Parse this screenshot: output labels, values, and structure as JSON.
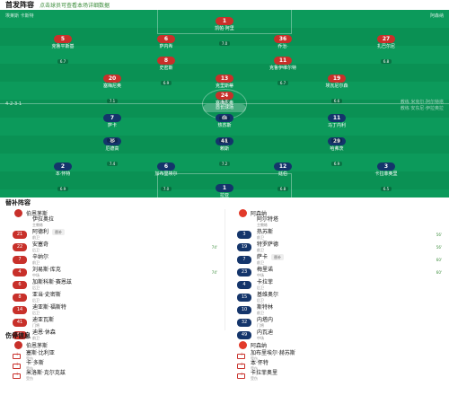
{
  "header": {
    "title": "首发阵容",
    "hint": "点击球员可查看本场详细数据"
  },
  "pitch": {
    "home_team_name": "埃莱斯 卡斯特",
    "away_team_name": "阿森纳",
    "away_form": "4-3-3",
    "home_form": "4-2-3-1",
    "venue": "酋长球场",
    "home_coach": "教练 安东尼·伊拉奥拉",
    "away_coach": "教练 米克尔·阿尔特塔"
  },
  "away_players": [
    {
      "num": "1",
      "name": "拉亚",
      "rating": "6.7"
    },
    {
      "num": "2",
      "name": "本·怀特",
      "rating": "6.9"
    },
    {
      "num": "6",
      "name": "加布里埃尔",
      "rating": "7.0"
    },
    {
      "num": "12",
      "name": "廷伯",
      "rating": "6.8"
    },
    {
      "num": "3",
      "name": "卡拉菲奥里",
      "rating": "6.5"
    },
    {
      "num": "8",
      "name": "厄德高",
      "rating": "7.4"
    },
    {
      "num": "41",
      "name": "赖斯",
      "rating": "7.2"
    },
    {
      "num": "29",
      "name": "哈弗茨",
      "rating": "6.9"
    },
    {
      "num": "7",
      "name": "萨卡",
      "rating": "7.5"
    },
    {
      "num": "9",
      "name": "热苏斯",
      "rating": "6.6"
    },
    {
      "num": "11",
      "name": "马丁内利",
      "rating": "7.0"
    }
  ],
  "home_players": [
    {
      "num": "1",
      "name": "凯帕·阿里",
      "rating": "7.0"
    },
    {
      "num": "5",
      "name": "克鲁平斯基",
      "rating": "6.7"
    },
    {
      "num": "6",
      "name": "萨内希",
      "rating": "6.5"
    },
    {
      "num": "36",
      "name": "乔治·",
      "rating": "6.6"
    },
    {
      "num": "27",
      "name": "扎巴尔尼",
      "rating": "6.8"
    },
    {
      "num": "8",
      "name": "史密斯",
      "rating": "6.9"
    },
    {
      "num": "11",
      "name": "克鲁伊维尔特",
      "rating": "6.7"
    },
    {
      "num": "20",
      "name": "塞梅尼奥",
      "rating": "7.1"
    },
    {
      "num": "13",
      "name": "克里斯蒂",
      "rating": "6.4"
    },
    {
      "num": "19",
      "name": "埃瓦尼尔森",
      "rating": "6.6"
    },
    {
      "num": "24",
      "name": "塞梅尼奥",
      "rating": "6.8"
    }
  ],
  "subs": {
    "title": "替补阵容",
    "left_team": "伯恩茅斯",
    "right_team": "阿森纳",
    "left_coach": "伊拉奥拉",
    "left_coach_role": "主教练",
    "right_coach": "阿尔特塔",
    "right_coach_role": "主教练",
    "left": [
      {
        "num": "21",
        "name": "阿德利",
        "pos": "前卫",
        "chip": "替补",
        "event": ""
      },
      {
        "num": "22",
        "name": "安塞奇",
        "pos": "后卫",
        "chip": "",
        "event": "74'"
      },
      {
        "num": "7",
        "name": "辛纳尔",
        "pos": "前卫",
        "chip": "",
        "event": ""
      },
      {
        "num": "4",
        "name": "刘易斯·库克",
        "pos": "中场",
        "chip": "",
        "event": "74'"
      },
      {
        "num": "6",
        "name": "加斯科斯·赛恩兹",
        "pos": "后卫",
        "chip": "",
        "event": ""
      },
      {
        "num": "8",
        "name": "亚当·史密斯",
        "pos": "后卫",
        "chip": "",
        "event": ""
      },
      {
        "num": "14",
        "name": "迪亚斯·福斯特",
        "pos": "后卫",
        "chip": "",
        "event": ""
      },
      {
        "num": "41",
        "name": "迪亚瓦斯",
        "pos": "门将",
        "chip": "",
        "event": ""
      },
      {
        "num": "50",
        "name": "迪恩·休森",
        "pos": "前卫",
        "chip": "",
        "event": ""
      }
    ],
    "right": [
      {
        "num": "3",
        "name": "热苏斯",
        "pos": "前卫",
        "chip": "",
        "event": "56'"
      },
      {
        "num": "19",
        "name": "特罗萨德",
        "pos": "前卫",
        "chip": "",
        "event": "56'"
      },
      {
        "num": "7",
        "name": "萨卡",
        "pos": "前卫",
        "chip": "替补",
        "event": "60'"
      },
      {
        "num": "23",
        "name": "梅里诺",
        "pos": "中场",
        "chip": "",
        "event": "60'"
      },
      {
        "num": "4",
        "name": "卡拉菲",
        "pos": "后卫",
        "chip": "",
        "event": ""
      },
      {
        "num": "15",
        "name": "基维奥尔",
        "pos": "后卫",
        "chip": "",
        "event": ""
      },
      {
        "num": "10",
        "name": "斯特林",
        "pos": "前卫",
        "chip": "",
        "event": ""
      },
      {
        "num": "32",
        "name": "内塔内",
        "pos": "门将",
        "chip": "",
        "event": ""
      },
      {
        "num": "49",
        "name": "内瓦迪",
        "pos": "中场",
        "chip": "",
        "event": ""
      }
    ]
  },
  "injuries": {
    "title": "伤停信息",
    "left_team": "伯恩茅斯",
    "right_team": "阿森纳",
    "left": [
      {
        "name": "塞斯·比利亚",
        "pos": "受伤"
      },
      {
        "name": "卡·多斯",
        "pos": "受伤"
      },
      {
        "name": "米洛斯·克尔克兹",
        "pos": "受伤"
      }
    ],
    "right": [
      {
        "name": "加布里埃尔·赫苏斯",
        "pos": "受伤"
      },
      {
        "name": "本·怀特",
        "pos": "受伤"
      },
      {
        "name": "卡拉菲奥里",
        "pos": "受伤"
      }
    ]
  },
  "colors": {
    "home": "#c8302a",
    "away": "#14356b",
    "pitch": "#0c9a5b"
  }
}
